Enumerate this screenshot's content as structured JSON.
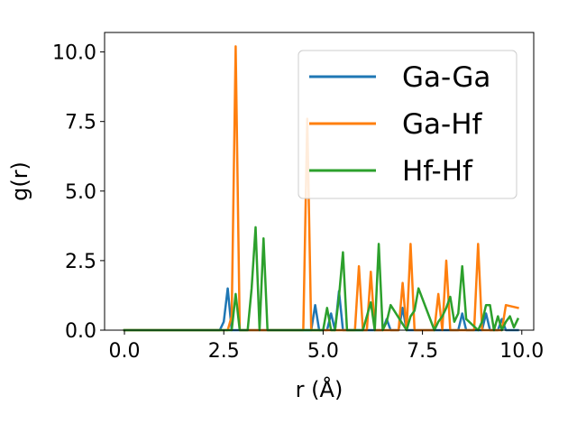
{
  "chart_data": {
    "type": "line",
    "title": "",
    "xlabel": "r (Å)",
    "ylabel": "g(r)",
    "xlim": [
      -0.5,
      10.3
    ],
    "ylim": [
      0,
      10.7
    ],
    "xticks": [
      0.0,
      2.5,
      5.0,
      7.5,
      10.0
    ],
    "xtick_labels": [
      "0.0",
      "2.5",
      "5.0",
      "7.5",
      "10.0"
    ],
    "yticks": [
      0.0,
      2.5,
      5.0,
      7.5,
      10.0
    ],
    "ytick_labels": [
      "0.0",
      "2.5",
      "5.0",
      "7.5",
      "10.0"
    ],
    "grid": false,
    "legend": {
      "placement": "upper-right"
    },
    "series": [
      {
        "name": "Ga-Ga",
        "color": "#1f77b4",
        "x": [
          0.0,
          2.4,
          2.5,
          2.6,
          2.7,
          2.8,
          4.7,
          4.8,
          4.9,
          5.0,
          5.1,
          5.2,
          5.3,
          5.4,
          5.5,
          6.5,
          6.6,
          6.7,
          6.9,
          7.0,
          7.1,
          8.4,
          8.5,
          8.6,
          9.0,
          9.1,
          9.2,
          9.4,
          9.5,
          9.6,
          9.7,
          9.9
        ],
        "y": [
          0.0,
          0.0,
          0.3,
          1.5,
          0.0,
          0.0,
          0.0,
          0.9,
          0.0,
          0.0,
          0.0,
          0.6,
          0.0,
          1.4,
          0.0,
          0.0,
          0.4,
          0.0,
          0.0,
          0.8,
          0.0,
          0.0,
          0.6,
          0.0,
          0.0,
          0.6,
          0.0,
          0.0,
          0.4,
          0.0,
          0.0,
          0.0
        ]
      },
      {
        "name": "Ga-Hf",
        "color": "#ff7f0e",
        "x": [
          0.0,
          2.6,
          2.7,
          2.8,
          2.9,
          4.5,
          4.6,
          4.7,
          4.8,
          5.7,
          5.8,
          5.9,
          6.0,
          6.1,
          6.2,
          6.3,
          6.9,
          7.0,
          7.1,
          7.2,
          7.3,
          7.8,
          7.9,
          8.0,
          8.1,
          8.2,
          8.3,
          8.7,
          8.8,
          8.9,
          9.0,
          9.5,
          9.6,
          9.9
        ],
        "y": [
          0.0,
          0.0,
          0.5,
          10.2,
          0.0,
          0.0,
          7.6,
          0.0,
          0.0,
          0.0,
          0.0,
          2.3,
          0.0,
          0.0,
          2.1,
          0.0,
          0.0,
          1.7,
          0.0,
          3.1,
          0.0,
          0.0,
          1.3,
          0.0,
          2.5,
          0.0,
          0.0,
          0.0,
          0.0,
          3.1,
          0.0,
          0.0,
          0.9,
          0.8
        ]
      },
      {
        "name": "Hf-Hf",
        "color": "#2ca02c",
        "x": [
          0.0,
          2.7,
          2.8,
          2.9,
          3.1,
          3.2,
          3.3,
          3.4,
          3.5,
          3.6,
          4.8,
          4.9,
          5.0,
          5.1,
          5.2,
          5.3,
          5.4,
          5.5,
          5.6,
          5.9,
          6.0,
          6.1,
          6.2,
          6.3,
          6.4,
          6.5,
          6.6,
          6.7,
          7.1,
          7.2,
          7.3,
          7.4,
          7.8,
          7.9,
          8.0,
          8.1,
          8.2,
          8.3,
          8.4,
          8.5,
          8.6,
          8.9,
          9.0,
          9.1,
          9.2,
          9.3,
          9.4,
          9.5,
          9.6,
          9.7,
          9.8,
          9.9
        ],
        "y": [
          0.0,
          0.0,
          1.3,
          0.0,
          0.0,
          1.5,
          3.7,
          0.0,
          3.3,
          0.0,
          0.0,
          0.0,
          0.0,
          0.8,
          0.0,
          0.0,
          1.2,
          2.8,
          0.0,
          0.0,
          0.0,
          0.5,
          1.0,
          0.0,
          3.1,
          0.0,
          0.3,
          0.9,
          0.0,
          0.5,
          0.7,
          1.5,
          0.0,
          0.3,
          0.5,
          0.8,
          1.2,
          0.3,
          0.6,
          2.3,
          0.4,
          0.0,
          0.3,
          0.9,
          0.9,
          0.0,
          0.5,
          0.0,
          0.3,
          0.5,
          0.1,
          0.4
        ]
      }
    ]
  }
}
